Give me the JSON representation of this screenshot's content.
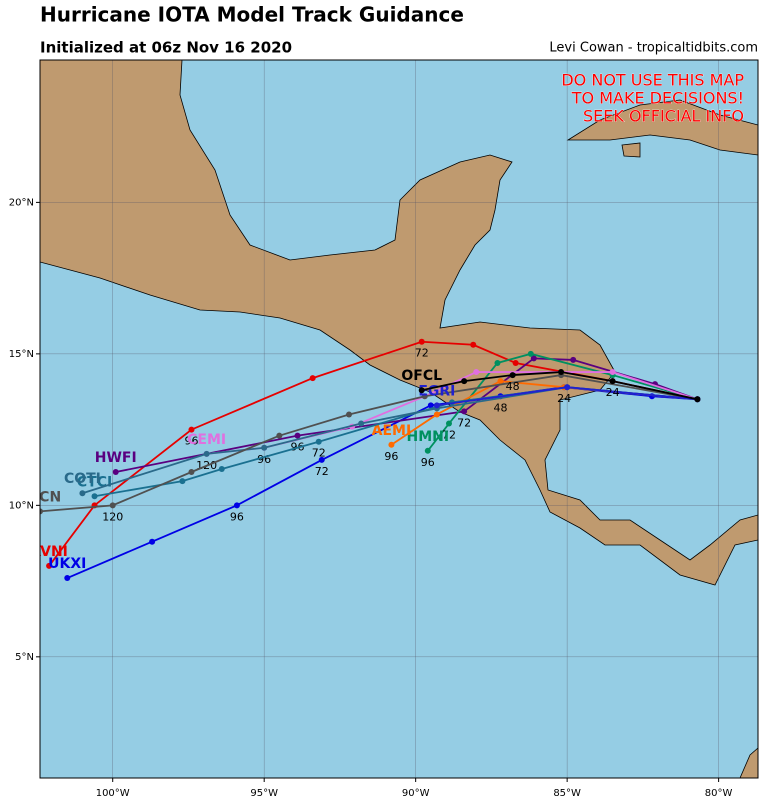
{
  "header": {
    "title": "Hurricane IOTA Model Track Guidance",
    "subtitle": "Initialized at 06z Nov 16 2020",
    "credit": "Levi Cowan - tropicaltidbits.com"
  },
  "warning": [
    "DO NOT USE THIS MAP",
    "TO MAKE DECISIONS!",
    "SEEK OFFICIAL INFO"
  ],
  "map": {
    "lonlim": [
      -102.4,
      -78.7
    ],
    "latlim": [
      1.0,
      24.7
    ],
    "lonticks": [
      {
        "value": -100,
        "label": "100°W"
      },
      {
        "value": -95,
        "label": "95°W"
      },
      {
        "value": -90,
        "label": "90°W"
      },
      {
        "value": -85,
        "label": "85°W"
      },
      {
        "value": -80,
        "label": "80°W"
      }
    ],
    "latticks": [
      {
        "value": 5,
        "label": "5°N"
      },
      {
        "value": 10,
        "label": "10°N"
      },
      {
        "value": 15,
        "label": "15°N"
      },
      {
        "value": 20,
        "label": "20°N"
      }
    ],
    "tracks": [
      {
        "name": "AVNI",
        "color": "#e60000",
        "points": [
          {
            "lon": -80.7,
            "lat": 13.5
          },
          {
            "lon": -83.5,
            "lat": 14.1
          },
          {
            "lon": -86.7,
            "lat": 14.7
          },
          {
            "lon": -88.1,
            "lat": 15.3
          },
          {
            "lon": -89.8,
            "lat": 15.4,
            "label": "72"
          },
          {
            "lon": -93.4,
            "lat": 14.2
          },
          {
            "lon": -97.4,
            "lat": 12.5,
            "label": "96"
          },
          {
            "lon": -100.6,
            "lat": 10.0
          },
          {
            "lon": -102.1,
            "lat": 8.0
          }
        ]
      },
      {
        "name": "UKXI",
        "color": "#0000e6",
        "points": [
          {
            "lon": -80.7,
            "lat": 13.5
          },
          {
            "lon": -82.2,
            "lat": 13.6
          },
          {
            "lon": -85.1,
            "lat": 13.9,
            "label": "24"
          },
          {
            "lon": -87.2,
            "lat": 13.6,
            "label": "48"
          },
          {
            "lon": -89.5,
            "lat": 13.3
          },
          {
            "lon": -93.1,
            "lat": 11.5,
            "label": "72"
          },
          {
            "lon": -95.9,
            "lat": 10.0,
            "label": "96"
          },
          {
            "lon": -98.7,
            "lat": 8.8
          },
          {
            "lon": -101.5,
            "lat": 7.6
          }
        ]
      },
      {
        "name": "HWFI",
        "color": "#5a0080",
        "points": [
          {
            "lon": -80.7,
            "lat": 13.5
          },
          {
            "lon": -82.1,
            "lat": 14.0
          },
          {
            "lon": -84.8,
            "lat": 14.8
          },
          {
            "lon": -86.1,
            "lat": 14.85
          },
          {
            "lon": -88.4,
            "lat": 13.1,
            "label": "72"
          },
          {
            "lon": -93.9,
            "lat": 12.3,
            "label": "96"
          },
          {
            "lon": -99.9,
            "lat": 11.1
          }
        ]
      },
      {
        "name": "HMNI",
        "color": "#009060",
        "points": [
          {
            "lon": -80.7,
            "lat": 13.5
          },
          {
            "lon": -83.5,
            "lat": 14.3
          },
          {
            "lon": -86.2,
            "lat": 15.0
          },
          {
            "lon": -87.3,
            "lat": 14.7
          },
          {
            "lon": -88.9,
            "lat": 12.7,
            "label": "72"
          },
          {
            "lon": -89.6,
            "lat": 11.8,
            "label": "96"
          }
        ]
      },
      {
        "name": "AEMI",
        "color": "#ff6a00",
        "points": [
          {
            "lon": -80.7,
            "lat": 13.5
          },
          {
            "lon": -85.1,
            "lat": 13.9
          },
          {
            "lon": -87.2,
            "lat": 14.1
          },
          {
            "lon": -89.3,
            "lat": 13.0
          },
          {
            "lon": -90.8,
            "lat": 12.0,
            "label": "96"
          }
        ]
      },
      {
        "name": "CEMI",
        "color": "#e070e0",
        "points": [
          {
            "lon": -80.7,
            "lat": 13.5
          },
          {
            "lon": -83.5,
            "lat": 14.4
          },
          {
            "lon": -88.0,
            "lat": 14.4
          },
          {
            "lon": -89.7,
            "lat": 13.6
          },
          {
            "lon": -92.1,
            "lat": 12.6
          },
          {
            "lon": -95.0,
            "lat": 11.9,
            "label": "96"
          },
          {
            "lon": -96.9,
            "lat": 11.7
          }
        ]
      },
      {
        "name": "CTCI",
        "color": "#1a7090",
        "points": [
          {
            "lon": -80.7,
            "lat": 13.5
          },
          {
            "lon": -85.0,
            "lat": 13.9
          },
          {
            "lon": -88.8,
            "lat": 13.4
          },
          {
            "lon": -93.2,
            "lat": 12.1,
            "label": "72"
          },
          {
            "lon": -96.4,
            "lat": 11.2
          },
          {
            "lon": -97.7,
            "lat": 10.8
          },
          {
            "lon": -100.6,
            "lat": 10.3
          }
        ]
      },
      {
        "name": "COTI",
        "color": "#2a6a8a",
        "points": [
          {
            "lon": -80.7,
            "lat": 13.5
          },
          {
            "lon": -85.0,
            "lat": 13.9
          },
          {
            "lon": -89.3,
            "lat": 13.2
          },
          {
            "lon": -91.8,
            "lat": 12.7
          },
          {
            "lon": -95.0,
            "lat": 11.9
          },
          {
            "lon": -96.9,
            "lat": 11.7,
            "label": "120"
          },
          {
            "lon": -101.0,
            "lat": 10.4
          }
        ]
      },
      {
        "name": "TVCN",
        "color": "#505050",
        "points": [
          {
            "lon": -80.7,
            "lat": 13.5
          },
          {
            "lon": -85.2,
            "lat": 14.3
          },
          {
            "lon": -89.7,
            "lat": 13.6
          },
          {
            "lon": -92.2,
            "lat": 13.0
          },
          {
            "lon": -94.5,
            "lat": 12.3
          },
          {
            "lon": -97.4,
            "lat": 11.1
          },
          {
            "lon": -100.0,
            "lat": 10.0,
            "label": "120"
          },
          {
            "lon": -102.4,
            "lat": 9.8
          }
        ]
      },
      {
        "name": "EGRI",
        "color": "#2020d0",
        "points": [
          {
            "lon": -80.7,
            "lat": 13.5
          },
          {
            "lon": -85.0,
            "lat": 13.9
          },
          {
            "lon": -89.3,
            "lat": 13.3
          }
        ]
      },
      {
        "name": "OFCL",
        "color": "#000000",
        "points": [
          {
            "lon": -80.7,
            "lat": 13.5
          },
          {
            "lon": -83.5,
            "lat": 14.1,
            "label": "24"
          },
          {
            "lon": -85.2,
            "lat": 14.4
          },
          {
            "lon": -86.8,
            "lat": 14.3,
            "label": "48"
          },
          {
            "lon": -88.4,
            "lat": 14.1
          },
          {
            "lon": -89.8,
            "lat": 13.8
          }
        ]
      }
    ]
  }
}
